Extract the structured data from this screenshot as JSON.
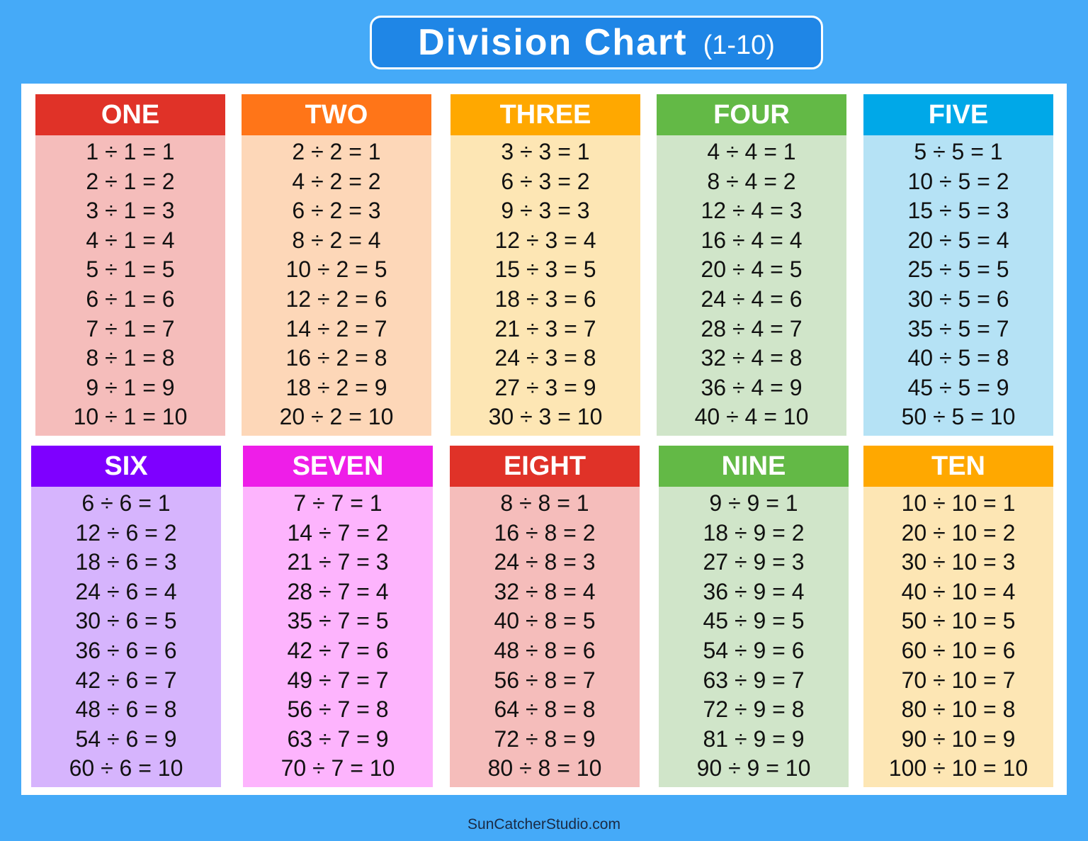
{
  "header": {
    "title": "Division Chart",
    "subtitle": "(1-10)"
  },
  "cards": [
    {
      "title": "ONE",
      "lines": [
        "1 ÷ 1 = 1",
        "2 ÷ 1 = 2",
        "3 ÷ 1 = 3",
        "4 ÷ 1 = 4",
        "5 ÷ 1 = 5",
        "6 ÷ 1 = 6",
        "7 ÷ 1 = 7",
        "8 ÷ 1 = 8",
        "9 ÷ 1 = 9",
        "10 ÷ 1 = 10"
      ]
    },
    {
      "title": "TWO",
      "lines": [
        "2 ÷ 2 = 1",
        "4 ÷ 2 = 2",
        "6 ÷ 2 = 3",
        "8 ÷ 2 = 4",
        "10 ÷ 2 = 5",
        "12 ÷ 2 = 6",
        "14 ÷ 2 = 7",
        "16 ÷ 2 = 8",
        "18 ÷ 2 = 9",
        "20 ÷ 2 = 10"
      ]
    },
    {
      "title": "THREE",
      "lines": [
        "3 ÷ 3 = 1",
        "6 ÷ 3 = 2",
        "9 ÷ 3 = 3",
        "12 ÷ 3 = 4",
        "15 ÷ 3 = 5",
        "18 ÷ 3 = 6",
        "21 ÷ 3 = 7",
        "24 ÷ 3 = 8",
        "27 ÷ 3 = 9",
        "30 ÷ 3 = 10"
      ]
    },
    {
      "title": "FOUR",
      "lines": [
        "4 ÷ 4 = 1",
        "8 ÷ 4 = 2",
        "12 ÷ 4 = 3",
        "16 ÷ 4 = 4",
        "20 ÷ 4 = 5",
        "24 ÷ 4 = 6",
        "28 ÷ 4 = 7",
        "32 ÷ 4 = 8",
        "36 ÷ 4 = 9",
        "40 ÷ 4 = 10"
      ]
    },
    {
      "title": "FIVE",
      "lines": [
        "5 ÷ 5 = 1",
        "10 ÷ 5 = 2",
        "15 ÷ 5 = 3",
        "20 ÷ 5 = 4",
        "25 ÷ 5 = 5",
        "30 ÷ 5 = 6",
        "35 ÷ 5 = 7",
        "40 ÷ 5 = 8",
        "45 ÷ 5 = 9",
        "50 ÷ 5 = 10"
      ]
    },
    {
      "title": "SIX",
      "lines": [
        "6 ÷ 6 = 1",
        "12 ÷ 6 = 2",
        "18 ÷ 6 = 3",
        "24 ÷ 6 = 4",
        "30 ÷ 6 = 5",
        "36 ÷ 6 = 6",
        "42 ÷ 6 = 7",
        "48 ÷ 6 = 8",
        "54 ÷ 6 = 9",
        "60 ÷ 6 = 10"
      ]
    },
    {
      "title": "SEVEN",
      "lines": [
        "7 ÷ 7 = 1",
        "14 ÷ 7 = 2",
        "21 ÷ 7 = 3",
        "28 ÷ 7 = 4",
        "35 ÷ 7 = 5",
        "42 ÷ 7 = 6",
        "49 ÷ 7 = 7",
        "56 ÷ 7 = 8",
        "63 ÷ 7 = 9",
        "70 ÷ 7 = 10"
      ]
    },
    {
      "title": "EIGHT",
      "lines": [
        "8 ÷ 8 = 1",
        "16 ÷ 8 = 2",
        "24 ÷ 8 = 3",
        "32 ÷ 8 = 4",
        "40 ÷ 8 = 5",
        "48 ÷ 8 = 6",
        "56 ÷ 8 = 7",
        "64 ÷ 8 = 8",
        "72 ÷ 8 = 9",
        "80 ÷ 8 = 10"
      ]
    },
    {
      "title": "NINE",
      "lines": [
        "9 ÷ 9 = 1",
        "18 ÷ 9 = 2",
        "27 ÷ 9 = 3",
        "36 ÷ 9 = 4",
        "45 ÷ 9 = 5",
        "54 ÷ 9 = 6",
        "63 ÷ 9 = 7",
        "72 ÷ 9 = 8",
        "81 ÷ 9 = 9",
        "90 ÷ 9 = 10"
      ]
    },
    {
      "title": "TEN",
      "lines": [
        "10 ÷ 10 = 1",
        "20 ÷ 10 = 2",
        "30 ÷ 10 = 3",
        "40 ÷ 10 = 4",
        "50 ÷ 10 = 5",
        "60 ÷ 10 = 6",
        "70 ÷ 10 = 7",
        "80 ÷ 10 = 8",
        "90 ÷ 10 = 9",
        "100 ÷ 10 = 10"
      ]
    }
  ],
  "footer": {
    "text": "SunCatcherStudio.com"
  }
}
